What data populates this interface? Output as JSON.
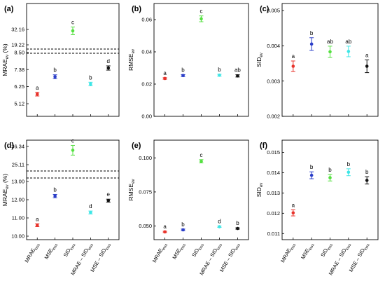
{
  "figure": {
    "xtick_labels": [
      {
        "main": "MRAE",
        "sub": "loss"
      },
      {
        "main": "MSE",
        "sub": "loss"
      },
      {
        "main": "SID",
        "sub": "loss"
      },
      {
        "main": "MRAE – SID",
        "sub": "loss"
      },
      {
        "main": "MSE – SID",
        "sub": "loss"
      }
    ],
    "series_colors": [
      "#e8332b",
      "#2b3ec8",
      "#55e040",
      "#3ee6e6",
      "#111111"
    ]
  },
  "chart_data": [
    {
      "panel": "(a)",
      "type": "scatter",
      "ylabel": {
        "main": "MRAE",
        "sub": "ev",
        "unit": " (%)"
      },
      "broken_axis": true,
      "lower_ticks": [
        5.12,
        6.25,
        7.38,
        8.5
      ],
      "upper_ticks": [
        19.22,
        32.16
      ],
      "values": [
        5.75,
        6.9,
        31.0,
        6.42,
        7.48
      ],
      "errors": [
        0.12,
        0.13,
        3.2,
        0.12,
        0.14
      ],
      "letters": [
        "a",
        "b",
        "c",
        "b",
        "d"
      ]
    },
    {
      "panel": "(b)",
      "type": "scatter",
      "ylabel": {
        "main": "RMSE",
        "sub": "ev",
        "unit": ""
      },
      "broken_axis": false,
      "ylim": [
        0.0,
        0.07
      ],
      "ticks": [
        0.0,
        0.02,
        0.04,
        0.06
      ],
      "tick_labels": [
        "0.00",
        "0.02",
        "0.04",
        "0.06"
      ],
      "values": [
        0.0235,
        0.0253,
        0.0605,
        0.0255,
        0.0251
      ],
      "errors": [
        0.0005,
        0.0006,
        0.0018,
        0.0006,
        0.0007
      ],
      "letters": [
        "a",
        "b",
        "c",
        "b",
        "ab"
      ]
    },
    {
      "panel": "(c)",
      "type": "scatter",
      "ylabel": {
        "main": "SID",
        "sub": "ev",
        "unit": ""
      },
      "broken_axis": false,
      "ylim": [
        0.002,
        0.0052
      ],
      "ticks": [
        0.002,
        0.003,
        0.004,
        0.005
      ],
      "tick_labels": [
        "0.002",
        "0.003",
        "0.004",
        "0.005"
      ],
      "values": [
        0.00342,
        0.00405,
        0.00383,
        0.00384,
        0.00342
      ],
      "errors": [
        0.00015,
        0.00018,
        0.00016,
        0.00015,
        0.00018
      ],
      "letters": [
        "a",
        "b",
        "ab",
        "ab",
        "a"
      ]
    },
    {
      "panel": "(d)",
      "type": "scatter",
      "ylabel": {
        "main": "MRAE",
        "sub": "ev",
        "unit": " (%)"
      },
      "broken_axis": true,
      "lower_ticks": [
        10.0,
        11.0,
        12.0,
        13.0
      ],
      "upper_ticks": [
        25.11,
        36.34
      ],
      "values": [
        10.6,
        12.2,
        34.0,
        11.3,
        11.95
      ],
      "errors": [
        0.08,
        0.09,
        3.0,
        0.08,
        0.08
      ],
      "letters": [
        "a",
        "b",
        "c",
        "d",
        "e"
      ]
    },
    {
      "panel": "(e)",
      "type": "scatter",
      "ylabel": {
        "main": "RMSE",
        "sub": "ev",
        "unit": ""
      },
      "broken_axis": false,
      "ylim": [
        0.04,
        0.113
      ],
      "ticks": [
        0.05,
        0.075,
        0.1
      ],
      "tick_labels": [
        "0.050",
        "0.075",
        "0.100"
      ],
      "values": [
        0.0457,
        0.0472,
        0.0975,
        0.0495,
        0.0482
      ],
      "errors": [
        0.0005,
        0.0006,
        0.0012,
        0.0005,
        0.0005
      ],
      "letters": [
        "a",
        "b",
        "c",
        "d",
        "b"
      ]
    },
    {
      "panel": "(f)",
      "type": "scatter",
      "ylabel": {
        "main": "SID",
        "sub": "ev",
        "unit": ""
      },
      "broken_axis": false,
      "ylim": [
        0.0107,
        0.0156
      ],
      "ticks": [
        0.011,
        0.012,
        0.013,
        0.014,
        0.015
      ],
      "tick_labels": [
        "0.011",
        "0.012",
        "0.013",
        "0.014",
        "0.015"
      ],
      "values": [
        0.01202,
        0.01387,
        0.01375,
        0.01402,
        0.01362
      ],
      "errors": [
        0.00015,
        0.00017,
        0.00016,
        0.00017,
        0.00018
      ],
      "letters": [
        "a",
        "b",
        "b",
        "b",
        "b"
      ]
    }
  ]
}
